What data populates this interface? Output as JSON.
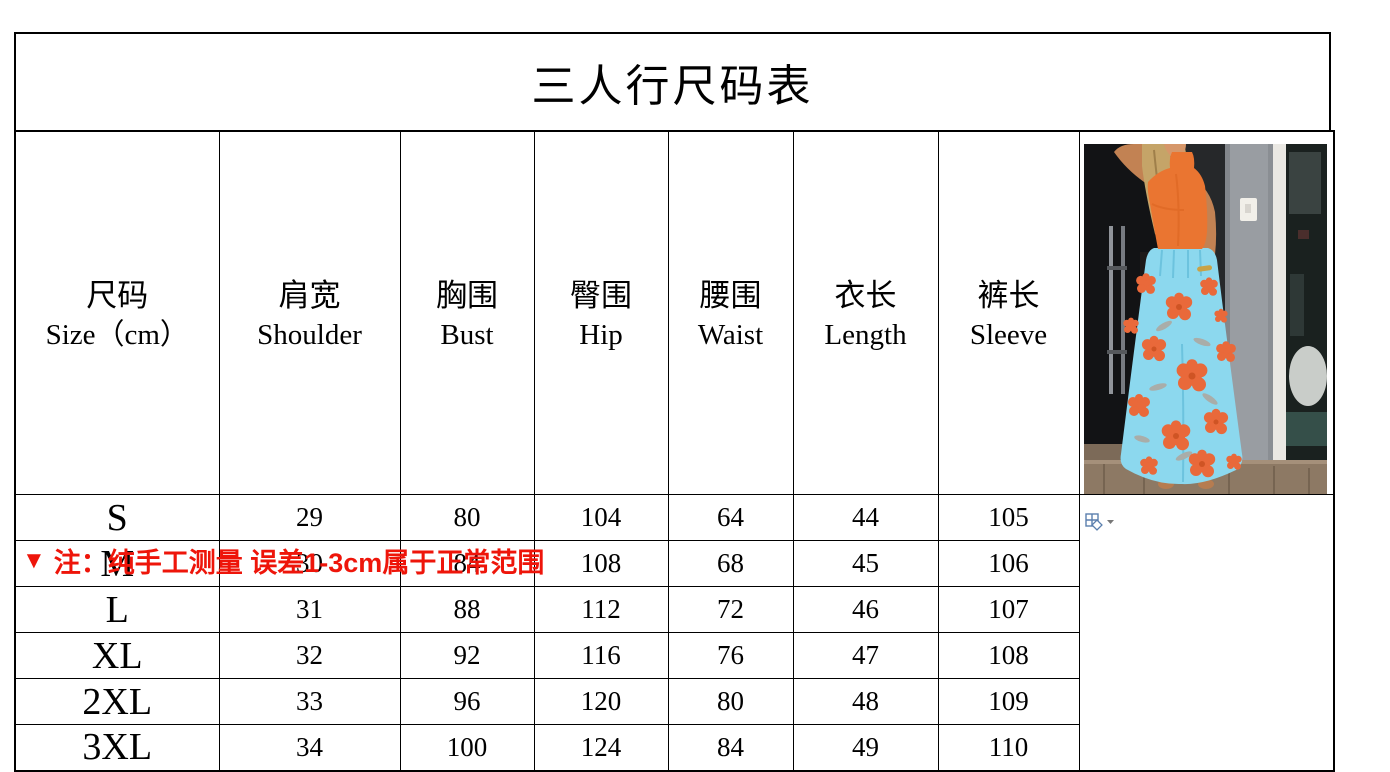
{
  "title": "三人行尺码表",
  "table": {
    "headers": [
      {
        "zh": "尺码",
        "en": "Size（cm）",
        "key": "size"
      },
      {
        "zh": "肩宽",
        "en": "Shoulder",
        "key": "shoulder"
      },
      {
        "zh": "胸围",
        "en": "Bust",
        "key": "bust"
      },
      {
        "zh": "臀围",
        "en": "Hip",
        "key": "hip"
      },
      {
        "zh": "腰围",
        "en": "Waist",
        "key": "waist"
      },
      {
        "zh": "衣长",
        "en": "Length",
        "key": "length"
      },
      {
        "zh": "裤长",
        "en": "Sleeve",
        "key": "sleeve"
      }
    ],
    "rows": [
      {
        "size": "S",
        "values": [
          "29",
          "80",
          "104",
          "64",
          "44",
          "105"
        ]
      },
      {
        "size": "M",
        "values": [
          "30",
          "84",
          "108",
          "68",
          "45",
          "106"
        ]
      },
      {
        "size": "L",
        "values": [
          "31",
          "88",
          "112",
          "72",
          "46",
          "107"
        ]
      },
      {
        "size": "XL",
        "values": [
          "32",
          "92",
          "116",
          "76",
          "47",
          "108"
        ]
      },
      {
        "size": "2XL",
        "values": [
          "33",
          "96",
          "120",
          "80",
          "48",
          "109"
        ]
      },
      {
        "size": "3XL",
        "values": [
          "34",
          "100",
          "124",
          "84",
          "49",
          "110"
        ]
      }
    ]
  },
  "note": {
    "marker": "▼",
    "text": "注：纯手工测量 误差1-3cm属于正常范围",
    "color": "#ee150a"
  },
  "photo": {
    "name": "model-wearing-orange-top-and-floral-wide-leg-pants",
    "palette": {
      "top_orange": "#ea7531",
      "pants_blue": "#8cd8ee",
      "flower_orange": "#e9693a",
      "skin": "#c28253",
      "hair_blonde": "#c5a468"
    }
  },
  "icons": {
    "layout_options": "layout-options-icon",
    "dropdown_caret": "▾"
  }
}
